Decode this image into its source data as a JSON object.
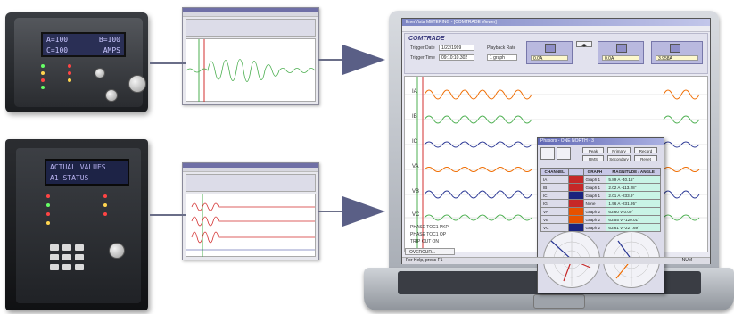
{
  "relay_top": {
    "lcd_line1_left": "A=100",
    "lcd_line1_right": "B=100",
    "lcd_line2_left": "C=100",
    "lcd_line2_right": "AMPS"
  },
  "relay_bottom": {
    "lcd_line1": "ACTUAL VALUES",
    "lcd_line2": "A1 STATUS"
  },
  "app": {
    "title_bar": "EnerVista METERING - [COMTRADE Viewer]",
    "panel_title": "COMTRADE",
    "trigger_date_label": "Trigger Date",
    "trigger_date_value": "1/22/1999",
    "trigger_time_label": "Trigger Time",
    "trigger_time_value": "09:10:10.302",
    "playback_label": "Playback Rate",
    "playback_value": "1 graph",
    "channel_inputs": [
      "0.0A",
      "0.0A",
      "3.958A"
    ],
    "trace_labels": [
      "IA",
      "IB",
      "IC",
      "VA",
      "VB",
      "VC"
    ],
    "digital_labels": [
      "PHASE TOC1 PKP",
      "PHASE TOC1 OP",
      "TRIP OUT ON"
    ],
    "tab_label": "OVERCUR...",
    "status_left": "For Help, press F1",
    "status_right": "NUM"
  },
  "phasor_dialog": {
    "title": "Phasors - ONE  NORTH - 3",
    "buttons": [
      "Peak",
      "Primary",
      "Record",
      "RMS",
      "Secondary",
      "Reset"
    ],
    "headers": [
      "CHANNEL",
      "GRAPH",
      "MAGNITUDE / ANGLE"
    ],
    "rows": [
      {
        "channel": "IA",
        "color": "#c62828",
        "graph": "Graph 1",
        "mag": "5.89 A  -40.15°"
      },
      {
        "channel": "IB",
        "color": "#c62828",
        "graph": "Graph 1",
        "mag": "2.02 A  -113.28°"
      },
      {
        "channel": "IC",
        "color": "#1a237e",
        "graph": "Graph 1",
        "mag": "2.01 A  -233.9°"
      },
      {
        "channel": "IG",
        "color": "#c62828",
        "graph": "None",
        "mag": "1.96 A  -231.95°"
      },
      {
        "channel": "VA",
        "color": "#e65100",
        "graph": "Graph 2",
        "mag": "63.60 V  0.00°"
      },
      {
        "channel": "VB",
        "color": "#e65100",
        "graph": "Graph 2",
        "mag": "63.55 V  -120.01°"
      },
      {
        "channel": "VC",
        "color": "#1a237e",
        "graph": "Graph 2",
        "mag": "63.61 V  -227.69°"
      }
    ]
  },
  "colors": {
    "trace_red": "#d32f2f",
    "trace_green": "#4caf50",
    "trace_blue": "#283593",
    "trace_orange": "#ef6c00",
    "arrow": "#5a5f86"
  },
  "icons": [
    "arrow-right-icon",
    "relay-device-icon",
    "laptop-icon"
  ]
}
